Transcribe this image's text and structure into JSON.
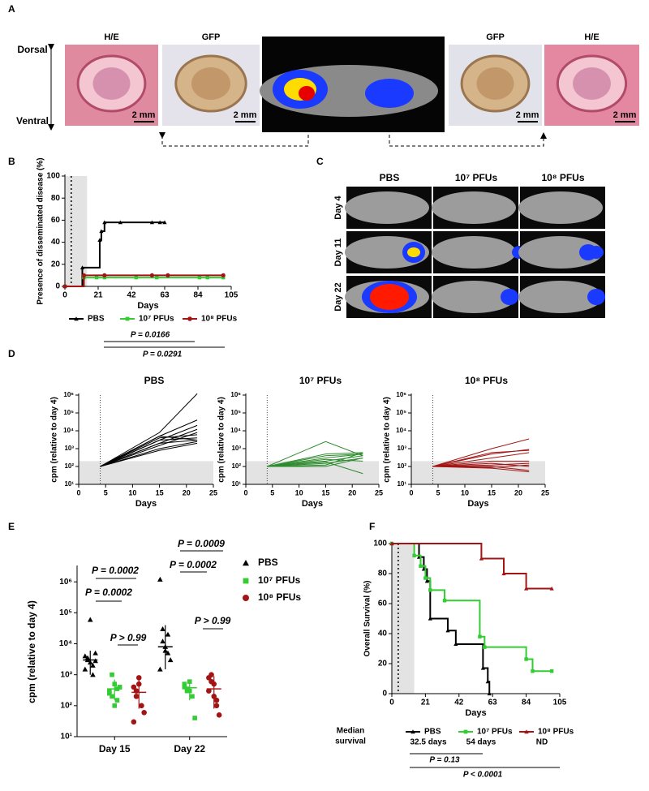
{
  "panel_labels": [
    "A",
    "B",
    "C",
    "D",
    "E",
    "F"
  ],
  "panel_a": {
    "orientation": [
      "Dorsal",
      "Ventral"
    ],
    "images": [
      {
        "title": "H/E",
        "scale": "2 mm"
      },
      {
        "title": "GFP",
        "scale": "2 mm"
      },
      {
        "title": "GFP",
        "scale": "2 mm"
      },
      {
        "title": "H/E",
        "scale": "2 mm"
      }
    ]
  },
  "panel_c": {
    "columns": [
      "PBS",
      "10⁷ PFUs",
      "10⁸ PFUs"
    ],
    "rows": [
      "Day 4",
      "Day 11",
      "Day 22"
    ]
  },
  "chart_data": [
    {
      "type": "step",
      "ylabel": "Presence of disseminated disease (%)",
      "xlabel": "Days",
      "xlim": [
        0,
        105
      ],
      "xticks": [
        0,
        21,
        42,
        63,
        84,
        105
      ],
      "ylim": [
        0,
        100
      ],
      "yticks": [
        0,
        20,
        40,
        60,
        80,
        100
      ],
      "shaded_region": [
        0,
        14
      ],
      "reference_line": 4,
      "legend": "bottom",
      "series": [
        {
          "name": "PBS",
          "color": "#000000",
          "marker": "triangle",
          "x": [
            0,
            11,
            22,
            23,
            25,
            35,
            55,
            60,
            63
          ],
          "values": [
            0,
            17,
            42,
            50,
            58,
            58,
            58,
            58,
            58
          ]
        },
        {
          "name": "10⁷ PFUs",
          "color": "#33cc33",
          "marker": "square",
          "x": [
            0,
            12,
            20,
            25,
            45,
            58,
            85,
            90,
            100
          ],
          "values": [
            0,
            8,
            8,
            8,
            8,
            8,
            8,
            8,
            8
          ]
        },
        {
          "name": "10⁸ PFUs",
          "color": "#a31515",
          "marker": "circle",
          "x": [
            0,
            12,
            25,
            55,
            65,
            100
          ],
          "values": [
            0,
            10,
            10,
            10,
            10,
            10
          ]
        }
      ],
      "annotations": [
        "P = 0.0166",
        "P = 0.0291"
      ]
    },
    {
      "type": "line",
      "title": "PBS",
      "ylabel": "cpm (relative to day 4)",
      "xlabel": "Days",
      "log_y": true,
      "xlim": [
        0,
        25
      ],
      "xticks": [
        0,
        5,
        10,
        15,
        20,
        25
      ],
      "ylim": [
        10,
        1000000
      ],
      "yticks": [
        {
          "value": 10,
          "label": "10¹"
        },
        {
          "value": 100,
          "label": "10²"
        },
        {
          "value": 1000,
          "label": "10³"
        },
        {
          "value": 10000,
          "label": "10⁴"
        },
        {
          "value": 100000,
          "label": "10⁵"
        },
        {
          "value": 1000000,
          "label": "10⁶"
        }
      ],
      "shaded_below": 200,
      "reference_line": 4,
      "color": "#000000",
      "x": [
        4,
        15,
        22
      ],
      "series": [
        {
          "values": [
            100,
            8000,
            1200000
          ]
        },
        {
          "values": [
            100,
            5000,
            40000
          ]
        },
        {
          "values": [
            100,
            3000,
            20000
          ]
        },
        {
          "values": [
            100,
            2000,
            12000
          ]
        },
        {
          "values": [
            100,
            1500,
            8000
          ]
        },
        {
          "values": [
            100,
            4000,
            6000
          ]
        },
        {
          "values": [
            100,
            3000,
            4000
          ]
        },
        {
          "values": [
            100,
            2000,
            3000
          ]
        },
        {
          "values": [
            100,
            1000,
            2500
          ]
        },
        {
          "values": [
            100,
            800,
            2000
          ]
        },
        {
          "values": [
            100,
            5000,
            3000
          ]
        }
      ]
    },
    {
      "type": "line",
      "title": "10⁷ PFUs",
      "ylabel": "cpm (relative to day 4)",
      "xlabel": "Days",
      "log_y": true,
      "xlim": [
        0,
        25
      ],
      "xticks": [
        0,
        5,
        10,
        15,
        20,
        25
      ],
      "ylim": [
        10,
        1000000
      ],
      "yticks": [
        {
          "value": 10,
          "label": "10¹"
        },
        {
          "value": 100,
          "label": "10²"
        },
        {
          "value": 1000,
          "label": "10³"
        },
        {
          "value": 10000,
          "label": "10⁴"
        },
        {
          "value": 100000,
          "label": "10⁵"
        },
        {
          "value": 1000000,
          "label": "10⁶"
        }
      ],
      "shaded_below": 200,
      "reference_line": 4,
      "color": "#2e8b2e",
      "x": [
        4,
        15,
        22
      ],
      "series": [
        {
          "values": [
            100,
            2500,
            400
          ]
        },
        {
          "values": [
            100,
            500,
            600
          ]
        },
        {
          "values": [
            100,
            300,
            500
          ]
        },
        {
          "values": [
            100,
            200,
            400
          ]
        },
        {
          "values": [
            100,
            150,
            300
          ]
        },
        {
          "values": [
            100,
            400,
            500
          ]
        },
        {
          "values": [
            100,
            120,
            600
          ]
        },
        {
          "values": [
            100,
            100,
            300
          ]
        },
        {
          "values": [
            100,
            250,
            200
          ]
        },
        {
          "values": [
            100,
            180,
            40
          ]
        }
      ]
    },
    {
      "type": "line",
      "title": "10⁸ PFUs",
      "ylabel": "cpm (relative to day 4)",
      "xlabel": "Days",
      "log_y": true,
      "xlim": [
        0,
        25
      ],
      "xticks": [
        0,
        5,
        10,
        15,
        20,
        25
      ],
      "ylim": [
        10,
        1000000
      ],
      "yticks": [
        {
          "value": 10,
          "label": "10¹"
        },
        {
          "value": 100,
          "label": "10²"
        },
        {
          "value": 1000,
          "label": "10³"
        },
        {
          "value": 10000,
          "label": "10⁴"
        },
        {
          "value": 100000,
          "label": "10⁵"
        },
        {
          "value": 1000000,
          "label": "10⁶"
        }
      ],
      "shaded_below": 200,
      "reference_line": 4,
      "color": "#a31515",
      "x": [
        4,
        15,
        22
      ],
      "series": [
        {
          "values": [
            100,
            1000,
            3500
          ]
        },
        {
          "values": [
            100,
            600,
            800
          ]
        },
        {
          "values": [
            100,
            500,
            900
          ]
        },
        {
          "values": [
            100,
            300,
            600
          ]
        },
        {
          "values": [
            100,
            200,
            200
          ]
        },
        {
          "values": [
            100,
            150,
            100
          ]
        },
        {
          "values": [
            100,
            120,
            150
          ]
        },
        {
          "values": [
            100,
            100,
            60
          ]
        },
        {
          "values": [
            100,
            80,
            50
          ]
        },
        {
          "values": [
            100,
            90,
            120
          ]
        }
      ]
    },
    {
      "type": "scatter",
      "ylabel": "cpm (relative to day 4)",
      "log_y": true,
      "categories": [
        "Day 15",
        "Day 22"
      ],
      "ylim": [
        10,
        3000000
      ],
      "yticks": [
        {
          "value": 10,
          "label": "10¹"
        },
        {
          "value": 100,
          "label": "10²"
        },
        {
          "value": 1000,
          "label": "10³"
        },
        {
          "value": 10000,
          "label": "10⁴"
        },
        {
          "value": 100000,
          "label": "10⁵"
        },
        {
          "value": 1000000,
          "label": "10⁶"
        }
      ],
      "legend": "right",
      "series": [
        {
          "name": "PBS",
          "color": "#000000",
          "marker": "triangle",
          "values": [
            [
              4000,
              3000,
              2500,
              2000,
              5000,
              1500,
              3500,
              60000,
              1000,
              2800
            ],
            [
              1200000,
              30000,
              8000,
              5000,
              3000,
              1500,
              12000,
              6000,
              20000
            ]
          ],
          "mean": [
            3000,
            8000
          ],
          "error": [
            [
              1000,
              6000
            ],
            [
              1500,
              40000
            ]
          ]
        },
        {
          "name": "10⁷ PFUs",
          "color": "#33cc33",
          "marker": "square",
          "values": [
            [
              300,
              200,
              500,
              150,
              400,
              250,
              1000,
              100,
              350
            ],
            [
              400,
              300,
              600,
              200,
              40,
              500,
              350,
              300
            ]
          ],
          "mean": [
            350,
            380
          ],
          "error": [
            [
              150,
              700
            ],
            [
              150,
              600
            ]
          ]
        },
        {
          "name": "10⁸ PFUs",
          "color": "#a31515",
          "marker": "circle",
          "values": [
            [
              400,
              200,
              800,
              100,
              60,
              30,
              300,
              500
            ],
            [
              800,
              600,
              200,
              100,
              50,
              300,
              1000,
              500,
              150
            ]
          ],
          "mean": [
            270,
            350
          ],
          "error": [
            [
              80,
              800
            ],
            [
              80,
              900
            ]
          ]
        }
      ],
      "annotations": [
        "P = 0.0002",
        "P = 0.0002",
        "P > 0.99",
        "P = 0.0009",
        "P = 0.0002",
        "P > 0.99"
      ]
    },
    {
      "type": "step",
      "ylabel": "Overall Survival (%)",
      "xlabel": "Days",
      "xlim": [
        0,
        105
      ],
      "xticks": [
        0,
        21,
        42,
        63,
        84,
        105
      ],
      "ylim": [
        0,
        100
      ],
      "yticks": [
        0,
        20,
        40,
        60,
        80,
        100
      ],
      "shaded_region": [
        0,
        14
      ],
      "reference_line": 4,
      "legend": "bottom",
      "median_label": [
        "Median",
        "survival"
      ],
      "series": [
        {
          "name": "PBS",
          "color": "#000000",
          "marker": "triangle",
          "median": "32.5 days",
          "x": [
            0,
            17,
            20,
            22,
            24,
            35,
            40,
            57,
            60,
            61
          ],
          "values": [
            100,
            91,
            83,
            75,
            50,
            42,
            33,
            17,
            8,
            0
          ]
        },
        {
          "name": "10⁷ PFUs",
          "color": "#33cc33",
          "marker": "square",
          "median": "54 days",
          "x": [
            0,
            14,
            18,
            21,
            24,
            33,
            55,
            58,
            84,
            88,
            100
          ],
          "values": [
            100,
            92,
            85,
            77,
            69,
            62,
            38,
            31,
            23,
            15,
            15
          ]
        },
        {
          "name": "10⁸ PFUs",
          "color": "#a31515",
          "marker": "triangle",
          "median": "ND",
          "x": [
            0,
            56,
            70,
            84,
            100
          ],
          "values": [
            100,
            90,
            80,
            70,
            70
          ]
        }
      ],
      "annotations": [
        "P = 0.13",
        "P < 0.0001"
      ]
    }
  ]
}
